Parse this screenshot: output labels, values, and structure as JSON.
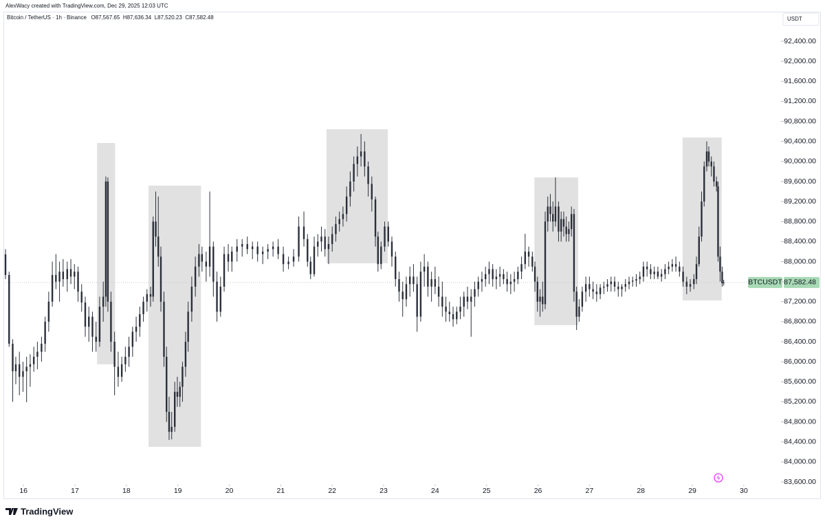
{
  "chart_data": {
    "type": "candlestick",
    "attribution": "AlexWacy created with TradingView.com, Dec 29, 2025 12:03 UTC",
    "title": "Bitcoin / TetherUS · 1h · Binance",
    "ohlc_labels": [
      "O87,567.65",
      "H87,636.34",
      "L87,520.23",
      "C87,582.48"
    ],
    "currency": "USDT",
    "symbol": "BTCUSDT",
    "brand": "TradingView",
    "last_price": {
      "value": 87582.48,
      "label": "87,582.48"
    },
    "last_price_color": "#a8dab5",
    "color": "#2a2e39",
    "highlight_color": "#e1e1e1",
    "grid": false,
    "xlim": [
      15.65,
      30.71
    ],
    "ylim": [
      83545,
      92950
    ],
    "xticks": [
      16,
      17,
      18,
      19,
      20,
      21,
      22,
      23,
      24,
      25,
      26,
      27,
      28,
      29,
      30
    ],
    "yticks": [
      {
        "value": 83600,
        "label": "83,600.00"
      },
      {
        "value": 84000,
        "label": "84,000.00"
      },
      {
        "value": 84400,
        "label": "84,400.00"
      },
      {
        "value": 84800,
        "label": "84,800.00"
      },
      {
        "value": 85200,
        "label": "85,200.00"
      },
      {
        "value": 85600,
        "label": "85,600.00"
      },
      {
        "value": 86000,
        "label": "86,000.00"
      },
      {
        "value": 86400,
        "label": "86,400.00"
      },
      {
        "value": 86800,
        "label": "86,800.00"
      },
      {
        "value": 87200,
        "label": "87,200.00"
      },
      {
        "value": 87600,
        "label": "87,600.00"
      },
      {
        "value": 88000,
        "label": "88,000.00"
      },
      {
        "value": 88400,
        "label": "88,400.00"
      },
      {
        "value": 88800,
        "label": "88,800.00"
      },
      {
        "value": 89200,
        "label": "89,200.00"
      },
      {
        "value": 89600,
        "label": "89,600.00"
      },
      {
        "value": 90000,
        "label": "90,000.00"
      },
      {
        "value": 90400,
        "label": "90,400.00"
      },
      {
        "value": 90800,
        "label": "90,800.00"
      },
      {
        "value": 91200,
        "label": "91,200.00"
      },
      {
        "value": 91600,
        "label": "91,600.00"
      },
      {
        "value": 92000,
        "label": "92,000.00"
      },
      {
        "value": 92400,
        "label": "92,400.00"
      }
    ],
    "highlights": [
      {
        "x0": 17.43,
        "x1": 17.78,
        "y0": 85949,
        "y1": 90369
      },
      {
        "x0": 18.43,
        "x1": 19.45,
        "y0": 84301,
        "y1": 89517
      },
      {
        "x0": 21.89,
        "x1": 23.08,
        "y0": 87966,
        "y1": 90643
      },
      {
        "x0": 25.93,
        "x1": 26.78,
        "y0": 86731,
        "y1": 89682
      },
      {
        "x0": 28.81,
        "x1": 29.57,
        "y0": 87225,
        "y1": 90478
      }
    ],
    "x": [
      15.65,
      15.72,
      15.79,
      15.85,
      15.92,
      15.99,
      16.06,
      16.13,
      16.2,
      16.27,
      16.35,
      16.42,
      16.49,
      16.56,
      16.63,
      16.7,
      16.77,
      16.85,
      16.92,
      16.99,
      17.06,
      17.13,
      17.2,
      17.27,
      17.34,
      17.41,
      17.48,
      17.55,
      17.6,
      17.64,
      17.7,
      17.77,
      17.84,
      17.91,
      17.98,
      18.05,
      18.12,
      18.19,
      18.26,
      18.33,
      18.4,
      18.47,
      18.52,
      18.57,
      18.62,
      18.67,
      18.73,
      18.78,
      18.83,
      18.88,
      18.94,
      18.99,
      19.04,
      19.09,
      19.15,
      19.2,
      19.27,
      19.34,
      19.41,
      19.47,
      19.55,
      19.62,
      19.69,
      19.76,
      19.83,
      19.9,
      19.98,
      20.05,
      20.15,
      20.25,
      20.35,
      20.45,
      20.55,
      20.65,
      20.75,
      20.85,
      20.95,
      21.05,
      21.15,
      21.25,
      21.35,
      21.45,
      21.52,
      21.58,
      21.65,
      21.72,
      21.79,
      21.86,
      21.93,
      22,
      22.07,
      22.14,
      22.21,
      22.28,
      22.35,
      22.42,
      22.49,
      22.56,
      22.63,
      22.7,
      22.77,
      22.84,
      22.89,
      22.95,
      23.02,
      23.09,
      23.16,
      23.23,
      23.3,
      23.37,
      23.44,
      23.51,
      23.58,
      23.65,
      23.72,
      23.79,
      23.86,
      23.93,
      24,
      24.07,
      24.14,
      24.21,
      24.28,
      24.35,
      24.42,
      24.49,
      24.56,
      24.63,
      24.7,
      24.77,
      24.84,
      24.91,
      24.98,
      25.05,
      25.12,
      25.19,
      25.26,
      25.33,
      25.4,
      25.47,
      25.54,
      25.61,
      25.68,
      25.75,
      25.82,
      25.89,
      25.94,
      25.99,
      26.04,
      26.09,
      26.14,
      26.19,
      26.24,
      26.29,
      26.34,
      26.4,
      26.45,
      26.5,
      26.55,
      26.6,
      26.65,
      26.7,
      26.75,
      26.8,
      26.86,
      26.93,
      27,
      27.07,
      27.14,
      27.21,
      27.28,
      27.35,
      27.42,
      27.49,
      27.56,
      27.63,
      27.7,
      27.77,
      27.84,
      27.91,
      27.98,
      28.05,
      28.12,
      28.19,
      28.26,
      28.33,
      28.4,
      28.47,
      28.54,
      28.61,
      28.68,
      28.75,
      28.82,
      28.89,
      28.96,
      29.03,
      29.08,
      29.13,
      29.18,
      29.23,
      29.28,
      29.32,
      29.37,
      29.42,
      29.47,
      29.5,
      29.54,
      29.58,
      29.61
    ],
    "open": [
      88145,
      87733,
      86360,
      85810,
      85949,
      85700,
      85810,
      85900,
      85950,
      86100,
      86200,
      86360,
      86800,
      87200,
      87733,
      87600,
      87800,
      87650,
      87850,
      87700,
      87800,
      87400,
      87184,
      86700,
      86900,
      86500,
      86400,
      87100,
      87300,
      89600,
      87200,
      86400,
      85900,
      85700,
      85950,
      86100,
      86300,
      86600,
      86700,
      86950,
      87200,
      87350,
      87300,
      88800,
      88500,
      88100,
      87200,
      86100,
      85000,
      84600,
      84700,
      85400,
      85300,
      85500,
      85900,
      86400,
      87000,
      87500,
      87900,
      88150,
      88000,
      87900,
      88300,
      87600,
      87000,
      87500,
      88150,
      88000,
      88200,
      88300,
      88350,
      88250,
      88300,
      88150,
      88200,
      88250,
      88300,
      88150,
      87950,
      88000,
      88100,
      88700,
      88450,
      88000,
      87750,
      88300,
      88400,
      88500,
      88250,
      88350,
      88550,
      88750,
      88850,
      88950,
      89300,
      89600,
      89950,
      90100,
      90200,
      89900,
      89550,
      89243,
      88500,
      87950,
      88300,
      88700,
      88400,
      88100,
      87650,
      87400,
      87250,
      87550,
      87700,
      87550,
      86900,
      87800,
      87900,
      87500,
      87650,
      87500,
      87300,
      87100,
      87000,
      86950,
      86850,
      87000,
      87100,
      87300,
      87200,
      87300,
      87450,
      87600,
      87650,
      87750,
      87850,
      87650,
      87700,
      87750,
      87650,
      87550,
      87600,
      87650,
      87800,
      87950,
      88200,
      88100,
      87900,
      87600,
      87200,
      87300,
      87150,
      88800,
      89100,
      88950,
      88800,
      89100,
      88600,
      88850,
      88700,
      88550,
      88650,
      88950,
      87400,
      86900,
      87100,
      87400,
      87550,
      87450,
      87400,
      87350,
      87480,
      87500,
      87550,
      87600,
      87500,
      87450,
      87500,
      87550,
      87600,
      87620,
      87650,
      87700,
      87900,
      87850,
      87750,
      87800,
      87700,
      87750,
      87850,
      87900,
      87950,
      87900,
      87800,
      87600,
      87500,
      87550,
      87650,
      87950,
      88500,
      89200,
      89900,
      90200,
      90000,
      89900,
      89600,
      89500,
      88100,
      87800,
      87567.65
    ],
    "high": [
      88250,
      87800,
      86450,
      86100,
      86200,
      86000,
      86100,
      86150,
      86300,
      86400,
      86500,
      86900,
      87400,
      88000,
      88150,
      88000,
      88050,
      88000,
      88050,
      87950,
      87900,
      87550,
      87300,
      87100,
      87000,
      86800,
      87300,
      87600,
      89700,
      89680,
      87400,
      86600,
      86200,
      86100,
      86300,
      86500,
      86700,
      86900,
      87100,
      87300,
      87450,
      87500,
      88900,
      89400,
      89300,
      88300,
      87400,
      86300,
      85300,
      85000,
      85600,
      85700,
      85600,
      86000,
      86600,
      87200,
      87700,
      88100,
      88350,
      88300,
      88200,
      89400,
      88400,
      87800,
      87700,
      88300,
      88350,
      88300,
      88450,
      88450,
      88500,
      88400,
      88400,
      88300,
      88350,
      88400,
      88450,
      88300,
      88100,
      88250,
      88900,
      89000,
      88550,
      88100,
      88500,
      88550,
      88700,
      88650,
      88500,
      88700,
      88900,
      89000,
      89100,
      89500,
      89800,
      90100,
      90300,
      90547,
      90400,
      90000,
      89700,
      89300,
      88600,
      88400,
      88800,
      88800,
      88500,
      88200,
      87800,
      87600,
      87700,
      87900,
      87950,
      87700,
      88000,
      88150,
      88000,
      87800,
      87900,
      87700,
      87600,
      87300,
      87200,
      87100,
      87100,
      87300,
      87400,
      87500,
      87450,
      87600,
      87700,
      87800,
      87900,
      88000,
      87950,
      87850,
      87900,
      87850,
      87800,
      87750,
      87800,
      87900,
      88100,
      88557,
      88300,
      88200,
      88000,
      87700,
      87450,
      87600,
      89000,
      89300,
      89350,
      89200,
      89682,
      89200,
      89000,
      89000,
      88900,
      88800,
      89100,
      89050,
      87500,
      87250,
      87500,
      87700,
      87700,
      87600,
      87550,
      87550,
      87600,
      87650,
      87700,
      87700,
      87600,
      87550,
      87650,
      87700,
      87700,
      87750,
      87800,
      88000,
      88000,
      87950,
      87900,
      87900,
      87850,
      87950,
      88000,
      88050,
      88100,
      88000,
      87900,
      87700,
      87650,
      87750,
      88100,
      88700,
      89400,
      90000,
      90400,
      90300,
      90100,
      90000,
      89700,
      89600,
      88300,
      87900,
      87636.34
    ],
    "low": [
      87650,
      86300,
      85200,
      85550,
      85330,
      85400,
      85193,
      85500,
      85800,
      85850,
      86000,
      86200,
      86600,
      87100,
      87450,
      87200,
      87500,
      87400,
      87550,
      87450,
      87200,
      87000,
      86500,
      86400,
      86200,
      86200,
      86300,
      86800,
      87100,
      87000,
      86200,
      85330,
      85500,
      85600,
      85800,
      85900,
      86100,
      86400,
      86500,
      86800,
      87000,
      87100,
      87200,
      88300,
      87900,
      87000,
      85900,
      84800,
      84438,
      84450,
      84600,
      85100,
      85100,
      85200,
      85700,
      86200,
      86800,
      87300,
      87700,
      87800,
      87600,
      87700,
      87300,
      86800,
      86900,
      87400,
      87800,
      87800,
      88000,
      88100,
      88150,
      88050,
      88000,
      87950,
      88050,
      88100,
      88050,
      87800,
      87850,
      87900,
      88000,
      88300,
      87900,
      87650,
      87700,
      88100,
      88200,
      88100,
      87950,
      88200,
      88400,
      88600,
      88700,
      88800,
      89100,
      89400,
      89700,
      89900,
      89700,
      89300,
      89000,
      88300,
      87800,
      87850,
      88200,
      88300,
      87900,
      87500,
      87200,
      86900,
      87100,
      87300,
      87400,
      86600,
      86800,
      87500,
      87300,
      87200,
      87350,
      87100,
      86900,
      86800,
      86800,
      86700,
      86750,
      86850,
      86900,
      87050,
      86500,
      87100,
      87300,
      87400,
      87500,
      87550,
      87500,
      87450,
      87500,
      87550,
      87400,
      87350,
      87400,
      87550,
      87650,
      87850,
      87900,
      87800,
      87400,
      87000,
      86900,
      87000,
      87050,
      88600,
      88800,
      88600,
      88700,
      88400,
      88400,
      88500,
      88400,
      88400,
      88500,
      87200,
      86634,
      86800,
      87000,
      87200,
      87300,
      87250,
      87200,
      87250,
      87350,
      87400,
      87400,
      87400,
      87300,
      87300,
      87400,
      87450,
      87500,
      87500,
      87550,
      87600,
      87700,
      87650,
      87650,
      87650,
      87600,
      87650,
      87750,
      87800,
      87800,
      87700,
      87500,
      87350,
      87400,
      87450,
      87550,
      87900,
      88400,
      89100,
      89800,
      89900,
      89700,
      89500,
      89400,
      88000,
      87600,
      87500,
      87520.23
    ],
    "close": [
      87733,
      86360,
      85810,
      85949,
      85700,
      85810,
      85900,
      85950,
      86100,
      86200,
      86360,
      86800,
      87200,
      87733,
      87600,
      87800,
      87650,
      87850,
      87700,
      87800,
      87400,
      87184,
      86700,
      86900,
      86500,
      86400,
      87100,
      87300,
      89600,
      87200,
      86400,
      85900,
      85700,
      85950,
      86100,
      86300,
      86600,
      86700,
      86950,
      87200,
      87350,
      87300,
      88800,
      88500,
      88100,
      87200,
      86100,
      85000,
      84600,
      84700,
      85400,
      85300,
      85500,
      85900,
      86400,
      87000,
      87500,
      87900,
      88150,
      88000,
      87900,
      88300,
      87600,
      87000,
      87500,
      88150,
      88000,
      88200,
      88300,
      88350,
      88250,
      88300,
      88150,
      88200,
      88250,
      88300,
      88150,
      87950,
      88000,
      88100,
      88700,
      88450,
      88000,
      87750,
      88300,
      88400,
      88500,
      88250,
      88350,
      88550,
      88750,
      88850,
      88950,
      89300,
      89600,
      89950,
      90100,
      90200,
      89900,
      89550,
      89243,
      88500,
      87950,
      88300,
      88700,
      88400,
      88100,
      87650,
      87400,
      87250,
      87550,
      87700,
      87550,
      86900,
      87800,
      87900,
      87500,
      87650,
      87500,
      87300,
      87100,
      87000,
      86950,
      86850,
      87000,
      87100,
      87300,
      87200,
      87300,
      87450,
      87600,
      87650,
      87750,
      87850,
      87650,
      87700,
      87750,
      87650,
      87550,
      87600,
      87650,
      87800,
      87950,
      88200,
      88100,
      87900,
      87600,
      87200,
      87300,
      87150,
      88800,
      89100,
      88950,
      88800,
      89100,
      88600,
      88850,
      88700,
      88550,
      88650,
      88950,
      87400,
      86900,
      87100,
      87400,
      87550,
      87450,
      87400,
      87350,
      87480,
      87500,
      87550,
      87600,
      87500,
      87450,
      87500,
      87550,
      87600,
      87620,
      87650,
      87700,
      87900,
      87850,
      87750,
      87800,
      87700,
      87750,
      87850,
      87900,
      87950,
      87900,
      87800,
      87600,
      87500,
      87550,
      87650,
      87950,
      88500,
      89200,
      89900,
      90200,
      90000,
      89900,
      89600,
      89500,
      88100,
      87800,
      87567.65,
      87582.48
    ]
  }
}
